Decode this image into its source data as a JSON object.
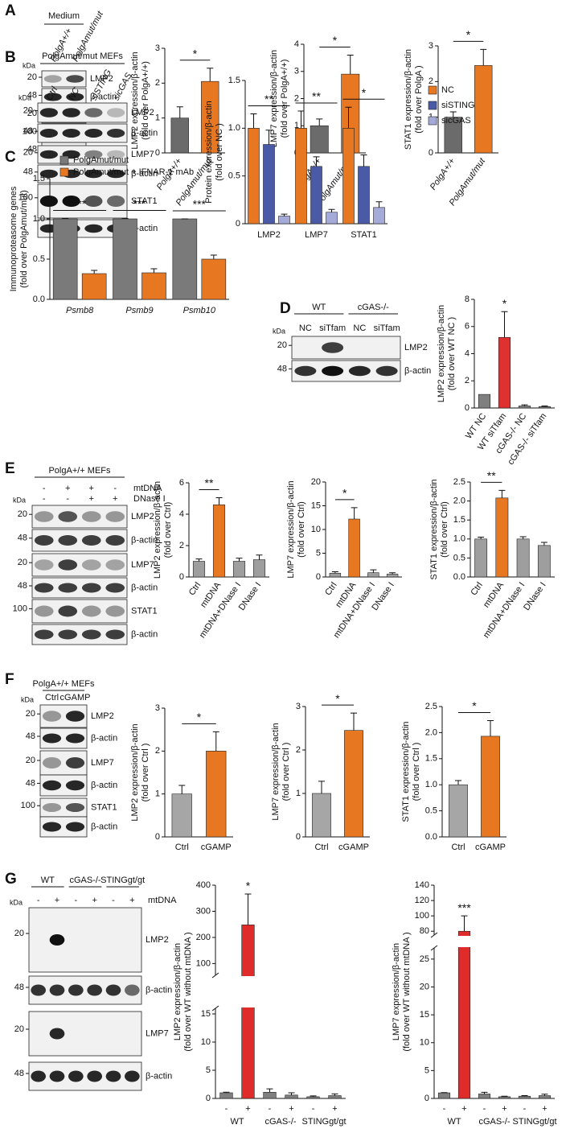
{
  "figure": {
    "panels": [
      {
        "letter": "A",
        "blot": {
          "header": [
            "Medium"
          ],
          "lanes": [
            "PolgA+/+",
            "PolgAmut/mut"
          ],
          "kda_label": "kDa",
          "rows": [
            {
              "kda": "20",
              "label": "LMP2"
            },
            {
              "kda": "48",
              "label": "β-actin"
            },
            {
              "kda": "20",
              "label": "LMP7"
            },
            {
              "kda": "100",
              "label": "STAT1"
            },
            {
              "kda": "48",
              "label": "β-actin"
            }
          ]
        }
      },
      {
        "letter": "B",
        "blot": {
          "header": [
            "PolgAmut/mut MEFs"
          ],
          "lanes": [
            "Ctrl",
            "NC",
            "siSTING",
            "sicGAS"
          ],
          "kda_label": "kDa",
          "rows": [
            {
              "kda": "20",
              "label": "LMP2"
            },
            {
              "kda": "48",
              "label": "β-actin"
            },
            {
              "kda": "20",
              "label": "LMP7"
            },
            {
              "kda": "48",
              "label": "β-actin"
            },
            {
              "kda": "100",
              "label": "STAT1"
            },
            {
              "label": "β-actin"
            }
          ]
        }
      },
      {
        "letter": "C"
      },
      {
        "letter": "D",
        "blot": {
          "header": [
            "WT",
            "cGAS-/-"
          ],
          "lanes": [
            "NC",
            "siTfam",
            "NC",
            "siTfam"
          ],
          "kda_label": "kDa",
          "rows": [
            {
              "kda": "20",
              "label": "LMP2"
            },
            {
              "kda": "48",
              "label": "β-actin"
            }
          ]
        }
      },
      {
        "letter": "E",
        "blot": {
          "header": [
            "PolgA+/+ MEFs"
          ],
          "treatments": [
            {
              "label": "mtDNA",
              "signs": [
                "-",
                "+",
                "+",
                "-"
              ]
            },
            {
              "label": "DNase I",
              "signs": [
                "-",
                "-",
                "+",
                "+"
              ]
            }
          ],
          "kda_label": "kDa",
          "rows": [
            {
              "kda": "20",
              "label": "LMP2"
            },
            {
              "kda": "48",
              "label": "β-actin"
            },
            {
              "kda": "20",
              "label": "LMP7"
            },
            {
              "kda": "48",
              "label": "β-actin"
            },
            {
              "kda": "100",
              "label": "STAT1"
            },
            {
              "label": "β-actin"
            }
          ]
        }
      },
      {
        "letter": "F",
        "blot": {
          "header": [
            "PolgA+/+ MEFs"
          ],
          "lanes": [
            "Ctrl",
            "cGAMP"
          ],
          "kda_label": "kDa",
          "rows": [
            {
              "kda": "20",
              "label": "LMP2"
            },
            {
              "kda": "48",
              "label": "β-actin"
            },
            {
              "kda": "20",
              "label": "LMP7"
            },
            {
              "kda": "48",
              "label": "β-actin"
            },
            {
              "kda": "100",
              "label": "STAT1"
            },
            {
              "label": "β-actin"
            }
          ]
        }
      },
      {
        "letter": "G",
        "blot": {
          "header": [
            "WT",
            "cGAS-/-",
            "STINGgt/gt"
          ],
          "treatments": [
            {
              "label": "mtDNA",
              "signs": [
                "-",
                "+",
                "-",
                "+",
                "-",
                "+"
              ]
            }
          ],
          "kda_label": "kDa",
          "rows": [
            {
              "kda": "20",
              "label": "LMP2"
            },
            {
              "kda": "48",
              "label": "β-actin"
            },
            {
              "kda": "20",
              "label": "LMP7"
            },
            {
              "kda": "48",
              "label": "β-actin"
            }
          ]
        }
      }
    ]
  },
  "chart_data": [
    {
      "type": "bar",
      "ylabel": [
        "LMP2 expression/β-actin",
        "(fold over PolgA+/+)"
      ],
      "categories": [
        "PolgA+/+",
        "PolgAmut/mut"
      ],
      "values": [
        1.0,
        2.05
      ],
      "errors": [
        0.32,
        0.38
      ],
      "colors": [
        "#6b6b6b",
        "#e87722"
      ],
      "ylim": [
        0,
        3
      ],
      "yticks": [
        0,
        1,
        2,
        3
      ],
      "significance": "*",
      "significance_style": "bracket",
      "rotated_labels": true,
      "italic_labels": true
    },
    {
      "type": "bar",
      "ylabel": [
        "LMP7 expression/β-actin",
        "(fold over PolgA+/+)"
      ],
      "categories": [
        "PolgA+/+",
        "PolgAmut/mut"
      ],
      "values": [
        1.0,
        2.9
      ],
      "errors": [
        0.25,
        0.7
      ],
      "colors": [
        "#6b6b6b",
        "#e87722"
      ],
      "ylim": [
        0,
        4
      ],
      "yticks": [
        0,
        1,
        2,
        3,
        4
      ],
      "significance": "*",
      "significance_style": "bracket",
      "rotated_labels": true,
      "italic_labels": true
    },
    {
      "type": "bar",
      "ylabel": [
        "STAT1 expression/β-actin",
        "(fold over PolgA )"
      ],
      "categories": [
        "PolgA+/+",
        "PolgAmut/mut"
      ],
      "values": [
        1.0,
        2.45
      ],
      "errors": [
        0.15,
        0.45
      ],
      "colors": [
        "#6b6b6b",
        "#e87722"
      ],
      "ylim": [
        0,
        3
      ],
      "yticks": [
        0,
        1,
        2,
        3
      ],
      "significance": "*",
      "significance_style": "bracket",
      "rotated_labels": true,
      "italic_labels": true
    },
    {
      "type": "grouped_bar",
      "ylabel": [
        "Protein expression/β-actin",
        "(fold over NC )"
      ],
      "categories": [
        "LMP2",
        "LMP7",
        "STAT1"
      ],
      "series": [
        {
          "name": "NC",
          "color": "#e87722",
          "values": [
            1.0,
            1.0,
            1.0
          ],
          "errors": [
            0.15,
            0.18,
            0.22
          ]
        },
        {
          "name": "siSTING",
          "color": "#4b5aa7",
          "values": [
            0.83,
            0.6,
            0.6
          ],
          "errors": [
            0.15,
            0.1,
            0.12
          ]
        },
        {
          "name": "sicGAS",
          "color": "#a5abd9",
          "values": [
            0.08,
            0.12,
            0.17
          ],
          "errors": [
            0.02,
            0.03,
            0.06
          ]
        }
      ],
      "ylim": [
        0,
        1.5
      ],
      "yticks": [
        0,
        0.5,
        {
          "value": 1,
          "label": "1.0"
        },
        1.5
      ],
      "significance": [
        "**",
        "**",
        "*"
      ],
      "legend": "right"
    },
    {
      "type": "grouped_bar",
      "ylabel": [
        "Immunoproteasome genes",
        "(fold over PolgAmut/mut)"
      ],
      "categories": [
        "Psmb8",
        "Psmb9",
        "Psmb10"
      ],
      "series": [
        {
          "name": "PolgAmut/mut",
          "color": "#7a7a7a",
          "values": [
            1.0,
            1.0,
            1.0
          ],
          "errors": [
            0.005,
            0.005,
            0
          ]
        },
        {
          "name": "PolgAmut/mut + IFNAR-1 mAb",
          "color": "#e87722",
          "values": [
            0.32,
            0.33,
            0.5
          ],
          "errors": [
            0.04,
            0.05,
            0.05
          ]
        }
      ],
      "ylim": [
        0,
        1.5
      ],
      "yticks": [
        {
          "value": 0,
          "label": "0.0"
        },
        0.5,
        {
          "value": 1,
          "label": "1.0"
        },
        1.5
      ],
      "significance": [
        "***",
        "***",
        "***"
      ],
      "legend": "top left",
      "italic_labels": true
    },
    {
      "type": "bar",
      "ylabel": [
        "LMP2 expression/β-actin",
        "(fold over WT NC )"
      ],
      "categories": [
        "WT NC",
        "WT siTfam",
        "cGAS-/- NC",
        "cGAS-/- siTfam"
      ],
      "values": [
        1.0,
        5.2,
        0.15,
        0.1
      ],
      "errors": [
        null,
        1.9,
        0.08,
        0.05
      ],
      "colors": [
        "#7f7f7f",
        "#e03131",
        "#7f7f7f",
        "#7f7f7f"
      ],
      "ylim": [
        0,
        8
      ],
      "yticks": [
        0,
        2,
        4,
        6,
        8
      ],
      "significance": "*",
      "significance_style": "star",
      "rotated_labels": true
    },
    {
      "type": "bar",
      "ylabel": [
        "LMP2 expression/β-actin",
        "(fold over Ctrl)"
      ],
      "categories": [
        "Ctrl",
        "mtDNA",
        "mtDNA+DNase I",
        "DNase I"
      ],
      "values": [
        1.0,
        4.6,
        1.0,
        1.1
      ],
      "errors": [
        0.15,
        0.45,
        0.2,
        0.3
      ],
      "colors": [
        "#9e9e9e",
        "#e87722",
        "#9e9e9e",
        "#9e9e9e"
      ],
      "ylim": [
        0,
        6
      ],
      "yticks": [
        0,
        2,
        4,
        6
      ],
      "significance": "**",
      "significance_style": "bracket",
      "rotated_labels": true
    },
    {
      "type": "bar",
      "ylabel": [
        "LMP7 expression/β-actin",
        "(fold over Ctrl)"
      ],
      "categories": [
        "Ctrl",
        "mtDNA",
        "mtDNA+DNase I",
        "DNase I"
      ],
      "values": [
        0.8,
        12.2,
        0.9,
        0.6
      ],
      "errors": [
        0.3,
        2.4,
        0.6,
        0.3
      ],
      "colors": [
        "#9e9e9e",
        "#e87722",
        "#9e9e9e",
        "#9e9e9e"
      ],
      "ylim": [
        0,
        20
      ],
      "yticks": [
        0,
        5,
        10,
        15,
        20
      ],
      "significance": "*",
      "significance_style": "bracket",
      "rotated_labels": true
    },
    {
      "type": "bar",
      "ylabel": [
        "STAT1 expression/β-actin",
        "(fold over Ctrl)"
      ],
      "categories": [
        "Ctrl",
        "mtDNA",
        "mtDNA+DNase I",
        "DNase I"
      ],
      "values": [
        1.0,
        2.08,
        1.0,
        0.83
      ],
      "errors": [
        0.05,
        0.2,
        0.06,
        0.08
      ],
      "colors": [
        "#9e9e9e",
        "#e87722",
        "#9e9e9e",
        "#9e9e9e"
      ],
      "ylim": [
        0,
        2.5
      ],
      "yticks": [
        {
          "value": 0,
          "label": "0.0"
        },
        0.5,
        {
          "value": 1,
          "label": "1.0"
        },
        1.5,
        {
          "value": 2,
          "label": "2.0"
        },
        2.5
      ],
      "significance": "**",
      "significance_style": "bracket",
      "rotated_labels": true
    },
    {
      "type": "bar",
      "ylabel": [
        "LMP2 expression/β-actin",
        "(fold over Ctrl )"
      ],
      "categories": [
        "Ctrl",
        "cGAMP"
      ],
      "values": [
        1.0,
        2.0
      ],
      "errors": [
        0.2,
        0.45
      ],
      "colors": [
        "#a6a6a6",
        "#e87722"
      ],
      "ylim": [
        0,
        3
      ],
      "yticks": [
        0,
        1,
        2,
        3
      ],
      "significance": "*",
      "significance_style": "bracket"
    },
    {
      "type": "bar",
      "ylabel": [
        "LMP7 expression/β-actin",
        "(fold over Ctrl )"
      ],
      "categories": [
        "Ctrl",
        "cGAMP"
      ],
      "values": [
        1.0,
        2.45
      ],
      "errors": [
        0.28,
        0.4
      ],
      "colors": [
        "#a6a6a6",
        "#e87722"
      ],
      "ylim": [
        0,
        3
      ],
      "yticks": [
        0,
        1,
        2,
        3
      ],
      "significance": "*",
      "significance_style": "bracket"
    },
    {
      "type": "bar",
      "ylabel": [
        "STAT1 expression/β-actin",
        "(fold over Ctrl )"
      ],
      "categories": [
        "Ctrl",
        "cGAMP"
      ],
      "values": [
        1.0,
        1.93
      ],
      "errors": [
        0.08,
        0.3
      ],
      "colors": [
        "#a6a6a6",
        "#e87722"
      ],
      "ylim": [
        0,
        2.5
      ],
      "yticks": [
        {
          "value": 0,
          "label": "0.0"
        },
        0.5,
        {
          "value": 1,
          "label": "1.0"
        },
        1.5,
        {
          "value": 2,
          "label": "2.0"
        },
        2.5
      ],
      "significance": "*",
      "significance_style": "bracket"
    },
    {
      "type": "bar",
      "ylabel": [
        "LMP2 expression/β-actin",
        "(fold over WT without mtDNA )"
      ],
      "categories": [
        "-",
        "+",
        "-",
        "+",
        "-",
        "+"
      ],
      "groups": [
        "WT",
        "cGAS-/-",
        "STINGgt/gt"
      ],
      "values": [
        1.0,
        248,
        1.1,
        0.6,
        0.3,
        0.5
      ],
      "errors": [
        0.1,
        118,
        0.6,
        0.4,
        0.15,
        0.3
      ],
      "colors": [
        "#7f7f7f",
        "#e02b2b",
        "#7f7f7f",
        "#7f7f7f",
        "#7f7f7f",
        "#7f7f7f"
      ],
      "ylim": [
        0,
        400
      ],
      "ybreak": [
        16,
        55
      ],
      "yticks": [
        0,
        5,
        10,
        15,
        100,
        200,
        300,
        400
      ],
      "significance": "*",
      "significance_style": "star"
    },
    {
      "type": "bar",
      "ylabel": [
        "LMP7 expression/β-actin",
        "(fold over WT without mtDNA )"
      ],
      "categories": [
        "-",
        "+",
        "-",
        "+",
        "-",
        "+"
      ],
      "groups": [
        "WT",
        "cGAS-/-",
        "STINGgt/gt"
      ],
      "values": [
        1.0,
        80,
        0.8,
        0.3,
        0.4,
        0.5
      ],
      "errors": [
        0.05,
        20,
        0.3,
        0.1,
        0.1,
        0.25
      ],
      "colors": [
        "#7f7f7f",
        "#e02b2b",
        "#7f7f7f",
        "#7f7f7f",
        "#7f7f7f",
        "#7f7f7f"
      ],
      "ylim": [
        0,
        140
      ],
      "ybreak": [
        27,
        75
      ],
      "yticks": [
        0,
        5,
        10,
        15,
        20,
        25,
        80,
        100,
        120,
        140
      ],
      "significance": "***",
      "significance_style": "star"
    }
  ]
}
